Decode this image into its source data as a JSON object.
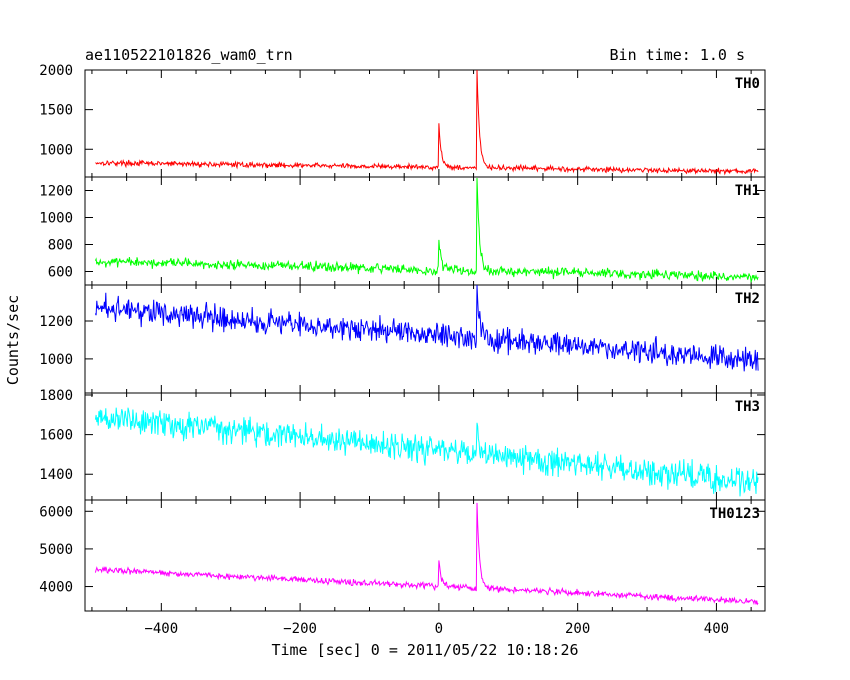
{
  "header": {
    "title": "ae110522101826_wam0_trn",
    "bin_time": "Bin time: 1.0 s"
  },
  "axes": {
    "xlabel": "Time [sec] 0 = 2011/05/22 10:18:26",
    "ylabel": "Counts/sec"
  },
  "chart_data": {
    "type": "line",
    "xlim": [
      -510,
      470
    ],
    "x_ticks": [
      -400,
      -200,
      0,
      200,
      400
    ],
    "x_tick_labels": [
      "−400",
      "−200",
      "0",
      "200",
      "400"
    ],
    "grid": false,
    "series": [
      {
        "name": "TH0",
        "color": "#ff0000",
        "ylim": [
          650,
          2000
        ],
        "y_ticks": [
          1000,
          1500,
          2000
        ],
        "y_tick_labels": [
          "1000",
          "1500",
          "2000"
        ],
        "baseline": {
          "x": [
            -495,
            460
          ],
          "y": [
            830,
            720
          ]
        },
        "noise": 35,
        "spikes": [
          {
            "x": 0,
            "y": 1320
          },
          {
            "x": 55,
            "y": 2020
          }
        ]
      },
      {
        "name": "TH1",
        "color": "#00ff00",
        "ylim": [
          500,
          1300
        ],
        "y_ticks": [
          600,
          800,
          1000,
          1200
        ],
        "y_tick_labels": [
          "600",
          "800",
          "1000",
          "1200"
        ],
        "baseline": {
          "x": [
            -495,
            460
          ],
          "y": [
            670,
            560
          ]
        },
        "noise": 40,
        "spikes": [
          {
            "x": 0,
            "y": 820
          },
          {
            "x": 55,
            "y": 1300
          }
        ]
      },
      {
        "name": "TH2",
        "color": "#0000ff",
        "ylim": [
          820,
          1390
        ],
        "y_ticks": [
          1000,
          1200
        ],
        "y_tick_labels": [
          "1000",
          "1200"
        ],
        "baseline": {
          "x": [
            -495,
            460
          ],
          "y": [
            1270,
            990
          ]
        },
        "noise": 70,
        "spikes": [
          {
            "x": 55,
            "y": 1380
          }
        ]
      },
      {
        "name": "TH3",
        "color": "#00ffff",
        "ylim": [
          1270,
          1810
        ],
        "y_ticks": [
          1400,
          1600,
          1800
        ],
        "y_tick_labels": [
          "1400",
          "1600",
          "1800"
        ],
        "baseline": {
          "x": [
            -495,
            460
          ],
          "y": [
            1690,
            1360
          ]
        },
        "noise": 75,
        "spikes": [
          {
            "x": 55,
            "y": 1640
          }
        ]
      },
      {
        "name": "TH0123",
        "color": "#ff00ff",
        "ylim": [
          3350,
          6300
        ],
        "y_ticks": [
          4000,
          5000,
          6000
        ],
        "y_tick_labels": [
          "4000",
          "5000",
          "6000"
        ],
        "baseline": {
          "x": [
            -495,
            460
          ],
          "y": [
            4450,
            3600
          ]
        },
        "noise": 90,
        "spikes": [
          {
            "x": 0,
            "y": 4700
          },
          {
            "x": 55,
            "y": 6300
          }
        ]
      }
    ]
  }
}
